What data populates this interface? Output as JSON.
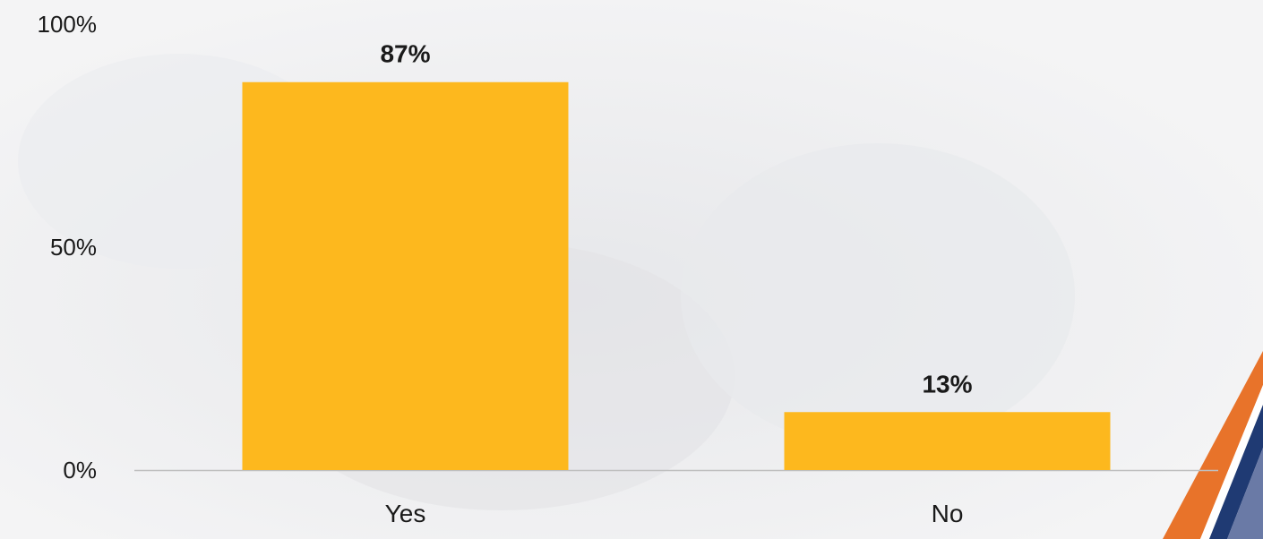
{
  "chart_data": {
    "type": "bar",
    "categories": [
      "Yes",
      "No"
    ],
    "values": [
      87,
      13
    ],
    "data_labels": [
      "87%",
      "13%"
    ],
    "ylim": [
      0,
      100
    ],
    "y_ticks": [
      0,
      50,
      100
    ],
    "y_tick_labels": [
      "0%",
      "50%",
      "100%"
    ],
    "grid": false,
    "legend": "none",
    "bar_color": "#FDB81E",
    "axis_color": "#BFBFBF"
  },
  "decor": {
    "accent_orange": "#E8732A",
    "accent_navy": "#1F3A73"
  }
}
